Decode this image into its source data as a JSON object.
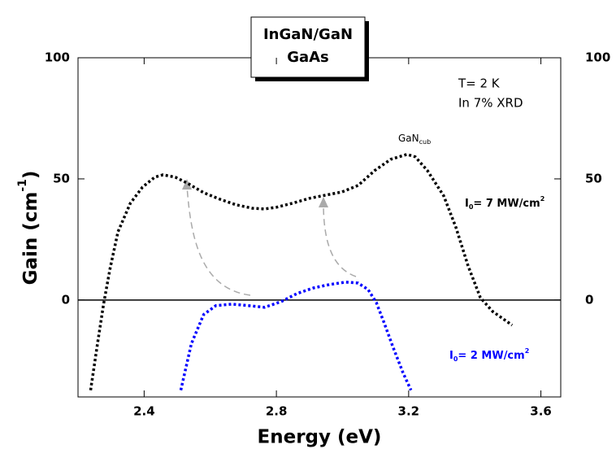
{
  "chart_data": {
    "type": "scatter",
    "title": [
      "InGaN/GaN",
      "GaAs"
    ],
    "xlabel": "Energy  (eV)",
    "ylabel": [
      "Gain (cm",
      "-1",
      ")"
    ],
    "xlim": [
      2.2,
      3.66
    ],
    "ylim": [
      -40,
      100
    ],
    "xticks": [
      2.4,
      2.8,
      3.2,
      3.6
    ],
    "yticks": [
      0,
      50,
      100
    ],
    "zero_line": 0,
    "series": [
      {
        "color": "#000000",
        "x": [
          2.238,
          2.26,
          2.277,
          2.297,
          2.321,
          2.358,
          2.395,
          2.432,
          2.457,
          2.494,
          2.53,
          2.58,
          2.629,
          2.678,
          2.727,
          2.764,
          2.8,
          2.85,
          2.9,
          2.949,
          2.998,
          3.047,
          3.097,
          3.146,
          3.195,
          3.22,
          3.257,
          3.306,
          3.343,
          3.38,
          3.417,
          3.454,
          3.513
        ],
        "values": [
          -37.2,
          -17.1,
          -2.0,
          13.1,
          28.2,
          39.9,
          46.6,
          50.7,
          51.7,
          50.7,
          48.3,
          44.3,
          41.6,
          39.3,
          37.9,
          37.6,
          38.3,
          40.0,
          42.0,
          43.3,
          44.6,
          47.3,
          53.4,
          58.1,
          60.1,
          59.1,
          53.4,
          43.0,
          30.0,
          14.0,
          1.0,
          -4.7,
          -10.4
        ]
      },
      {
        "color": "#0000ff",
        "x": [
          2.511,
          2.543,
          2.58,
          2.617,
          2.666,
          2.715,
          2.764,
          2.814,
          2.863,
          2.912,
          2.961,
          3.01,
          3.047,
          3.077,
          3.102,
          3.126,
          3.151,
          3.183,
          3.207
        ],
        "values": [
          -37.2,
          -18,
          -6,
          -2.3,
          -1.7,
          -2.3,
          -3.0,
          -0.7,
          2.7,
          5.0,
          6.4,
          7.4,
          7.0,
          4.4,
          -1.0,
          -9.4,
          -18.8,
          -30,
          -37.2
        ]
      }
    ],
    "annotations": {
      "conditions": [
        "T= 2 K",
        "In 7% XRD"
      ],
      "peak": [
        "GaN",
        "cub"
      ],
      "high": [
        "I",
        "0",
        "= 7 MW/cm",
        "2"
      ],
      "low": [
        "I",
        "0",
        "= 2 MW/cm",
        "2"
      ]
    }
  }
}
